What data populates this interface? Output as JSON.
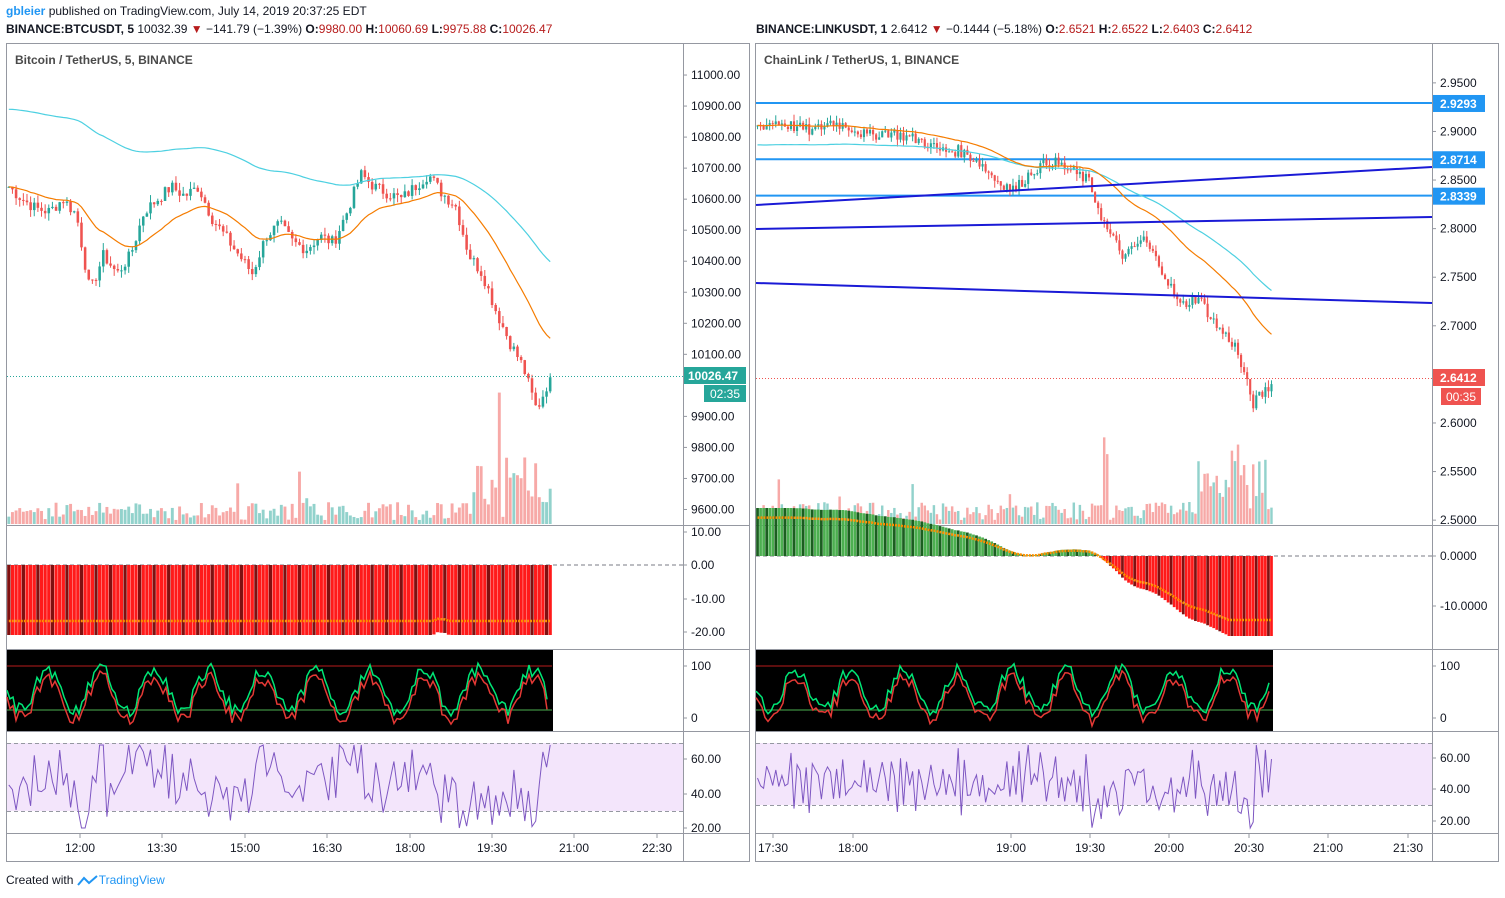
{
  "header": {
    "user": "gbleier",
    "published_text": "published on TradingView.com, July 14, 2019 20:37:25 EDT"
  },
  "left": {
    "symbol": "BINANCE:BTCUSDT, 5",
    "price": "10032.39",
    "change": "−141.79 (−1.39%)",
    "o_label": "O:",
    "o": "9980.00",
    "h_label": "H:",
    "h": "10060.69",
    "l_label": "L:",
    "l": "9975.88",
    "c_label": "C:",
    "c": "10026.47",
    "pane_title": "Bitcoin / TetherUS, 5, BINANCE",
    "price_badge": "10026.47",
    "time_badge": "02:35"
  },
  "right": {
    "symbol": "BINANCE:LINKUSDT, 1",
    "price": "2.6412",
    "change": "−0.1444 (−5.18%)",
    "o_label": "O:",
    "o": "2.6521",
    "h_label": "H:",
    "h": "2.6522",
    "l_label": "L:",
    "l": "2.6403",
    "c_label": "C:",
    "c": "2.6412",
    "pane_title": "ChainLink / TetherUS, 1, BINANCE",
    "price_badge": "2.6412",
    "time_badge": "00:35",
    "level_badges": [
      "2.9293",
      "2.8714",
      "2.8339"
    ]
  },
  "footer": {
    "created_with": "Created with",
    "brand": "TradingView"
  },
  "colors": {
    "up": "#26a69a",
    "down": "#ef5350",
    "ema_fast": "#f57c00",
    "ema_slow": "#4dd0e1",
    "blue_line": "#1a1ad6",
    "level_line": "#2196f3",
    "rsi_line": "#7e57c2",
    "rsi_band": "#f3e5fb"
  },
  "chart_data": [
    {
      "type": "candlestick",
      "name": "Bitcoin / TetherUS, 5, BINANCE",
      "ylim": [
        9550,
        11100
      ],
      "y_ticks": [
        "11000.00",
        "10900.00",
        "10800.00",
        "10700.00",
        "10600.00",
        "10500.00",
        "10400.00",
        "10300.00",
        "10200.00",
        "10100.00",
        "9900.00",
        "9800.00",
        "9700.00",
        "9600.00"
      ],
      "x_ticks": [
        "12:00",
        "13:30",
        "15:00",
        "16:30",
        "18:00",
        "19:30",
        "21:00",
        "22:30"
      ],
      "close_path": [
        10640,
        10600,
        10570,
        10560,
        10600,
        10550,
        10300,
        10420,
        10360,
        10420,
        10560,
        10600,
        10640,
        10610,
        10640,
        10540,
        10480,
        10420,
        10360,
        10480,
        10520,
        10460,
        10440,
        10480,
        10460,
        10560,
        10680,
        10640,
        10620,
        10600,
        10640,
        10680,
        10620,
        10580,
        10420,
        10360,
        10240,
        10140,
        10060,
        9920,
        10026
      ],
      "indicator_ticks_1": [
        "10.00",
        "0.00",
        "-10.00",
        "-20.00"
      ],
      "indicator_ticks_2": [
        "100",
        "0"
      ],
      "rsi_ticks": [
        "60.00",
        "40.00",
        "20.00"
      ]
    },
    {
      "type": "candlestick",
      "name": "ChainLink / TetherUS, 1, BINANCE",
      "ylim": [
        2.495,
        2.99
      ],
      "y_ticks": [
        "2.9500",
        "2.9000",
        "2.8500",
        "2.8000",
        "2.7500",
        "2.7000",
        "2.6500",
        "2.6000",
        "2.5500",
        "2.5000"
      ],
      "x_ticks": [
        "17:30",
        "18:00",
        "19:00",
        "19:30",
        "20:00",
        "20:30",
        "21:00",
        "21:30"
      ],
      "close_path": [
        2.905,
        2.91,
        2.905,
        2.9,
        2.91,
        2.905,
        2.895,
        2.9,
        2.895,
        2.89,
        2.88,
        2.88,
        2.87,
        2.85,
        2.84,
        2.86,
        2.87,
        2.86,
        2.85,
        2.8,
        2.77,
        2.79,
        2.76,
        2.72,
        2.73,
        2.7,
        2.68,
        2.62,
        2.64
      ],
      "horizontal_levels": [
        2.9293,
        2.8714,
        2.8339
      ],
      "indicator_ticks_1": [
        "0.0000",
        "-10.0000"
      ],
      "indicator_ticks_2": [
        "100",
        "0"
      ],
      "rsi_ticks": [
        "60.00",
        "40.00",
        "20.00"
      ]
    }
  ]
}
